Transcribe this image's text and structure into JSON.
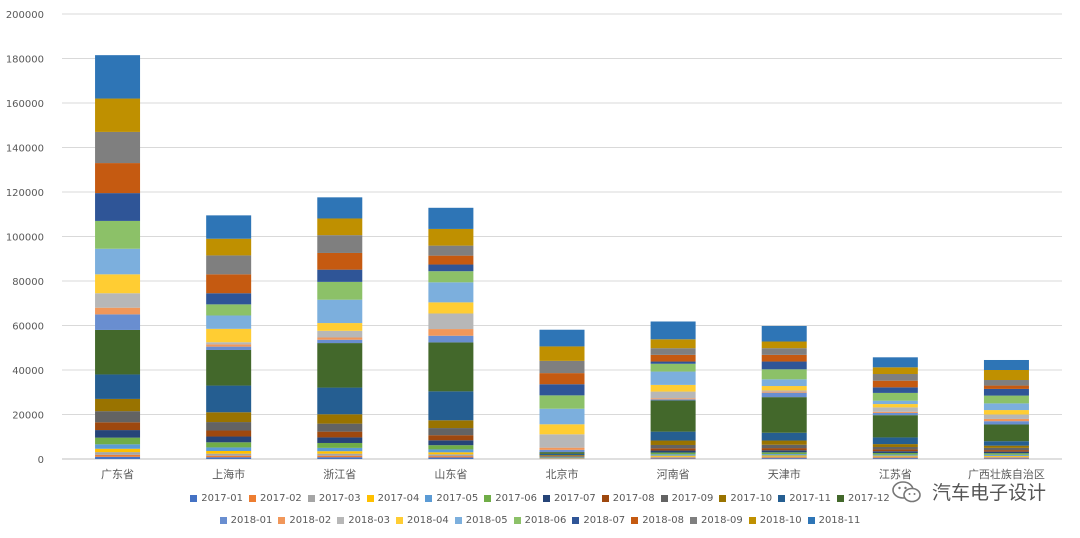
{
  "chart_data": {
    "type": "bar",
    "stacked": true,
    "categories": [
      "广东省",
      "上海市",
      "浙江省",
      "山东省",
      "北京市",
      "河南省",
      "天津市",
      "江苏省",
      "广西壮族自治区"
    ],
    "ylim": [
      0,
      200000
    ],
    "yticks": [
      0,
      20000,
      40000,
      60000,
      80000,
      100000,
      120000,
      140000,
      160000,
      180000,
      200000
    ],
    "grid": true,
    "legend_position": "bottom",
    "series": [
      {
        "name": "2017-01",
        "color": "#4472C4",
        "values": [
          1000,
          800,
          800,
          700,
          100,
          300,
          400,
          400,
          300
        ]
      },
      {
        "name": "2017-02",
        "color": "#ED7D31",
        "values": [
          900,
          700,
          700,
          600,
          100,
          300,
          300,
          300,
          300
        ]
      },
      {
        "name": "2017-03",
        "color": "#A5A5A5",
        "values": [
          1200,
          900,
          900,
          800,
          100,
          400,
          400,
          400,
          400
        ]
      },
      {
        "name": "2017-04",
        "color": "#FFC000",
        "values": [
          1500,
          1200,
          1100,
          900,
          100,
          500,
          500,
          400,
          400
        ]
      },
      {
        "name": "2017-05",
        "color": "#5B9BD5",
        "values": [
          2000,
          1600,
          1500,
          1300,
          200,
          600,
          600,
          500,
          500
        ]
      },
      {
        "name": "2017-06",
        "color": "#70AD47",
        "values": [
          3000,
          2300,
          2200,
          1900,
          200,
          800,
          800,
          700,
          700
        ]
      },
      {
        "name": "2017-07",
        "color": "#264478",
        "values": [
          3400,
          2600,
          2500,
          2200,
          200,
          900,
          900,
          800,
          700
        ]
      },
      {
        "name": "2017-08",
        "color": "#9E480E",
        "values": [
          3500,
          2700,
          2600,
          2300,
          200,
          1000,
          1000,
          800,
          700
        ]
      },
      {
        "name": "2017-09",
        "color": "#636363",
        "values": [
          5000,
          3800,
          3600,
          3200,
          300,
          1500,
          1500,
          1100,
          1000
        ]
      },
      {
        "name": "2017-10",
        "color": "#997300",
        "values": [
          5500,
          4400,
          4200,
          3500,
          300,
          2000,
          1900,
          1300,
          1000
        ]
      },
      {
        "name": "2017-11",
        "color": "#255E91",
        "values": [
          11000,
          12000,
          12000,
          13000,
          500,
          4000,
          3500,
          3000,
          2000
        ]
      },
      {
        "name": "2017-12",
        "color": "#43682B",
        "values": [
          20000,
          16000,
          20000,
          22000,
          800,
          14000,
          16000,
          10000,
          7500
        ]
      },
      {
        "name": "2018-01",
        "color": "#698ED0",
        "values": [
          7000,
          1500,
          1500,
          3000,
          1000,
          500,
          2000,
          1000,
          1500
        ]
      },
      {
        "name": "2018-02",
        "color": "#F1975A",
        "values": [
          3000,
          1000,
          1000,
          3000,
          1000,
          500,
          500,
          500,
          1000
        ]
      },
      {
        "name": "2018-03",
        "color": "#B7B7B7",
        "values": [
          6500,
          1000,
          3000,
          7000,
          6000,
          3000,
          500,
          2000,
          2000
        ]
      },
      {
        "name": "2018-04",
        "color": "#FFCD33",
        "values": [
          8500,
          6000,
          3500,
          5000,
          4500,
          3000,
          2000,
          1500,
          2000
        ]
      },
      {
        "name": "2018-05",
        "color": "#7CAFDD",
        "values": [
          11500,
          6000,
          10500,
          9000,
          7000,
          6000,
          3000,
          1500,
          3000
        ]
      },
      {
        "name": "2018-06",
        "color": "#8CC168",
        "values": [
          12500,
          5000,
          8000,
          5000,
          6000,
          3500,
          4500,
          3500,
          3500
        ]
      },
      {
        "name": "2018-07",
        "color": "#2F5597",
        "values": [
          12500,
          5000,
          5500,
          3000,
          5000,
          1000,
          3500,
          2500,
          3000
        ]
      },
      {
        "name": "2018-08",
        "color": "#C55A11",
        "values": [
          13500,
          8500,
          7500,
          4000,
          5000,
          3000,
          3000,
          3000,
          1500
        ]
      },
      {
        "name": "2018-09",
        "color": "#7F7F7F",
        "values": [
          14000,
          8500,
          8000,
          4500,
          5500,
          3000,
          3000,
          3000,
          2500
        ]
      },
      {
        "name": "2018-10",
        "color": "#BF9000",
        "values": [
          15000,
          7500,
          7500,
          7500,
          6500,
          4000,
          3000,
          3000,
          4500
        ]
      },
      {
        "name": "2018-11",
        "color": "#2E75B6",
        "values": [
          19500,
          10500,
          9500,
          9500,
          7500,
          8000,
          7000,
          4500,
          4500
        ]
      }
    ]
  },
  "watermark": {
    "text": "汽车电子设计"
  }
}
